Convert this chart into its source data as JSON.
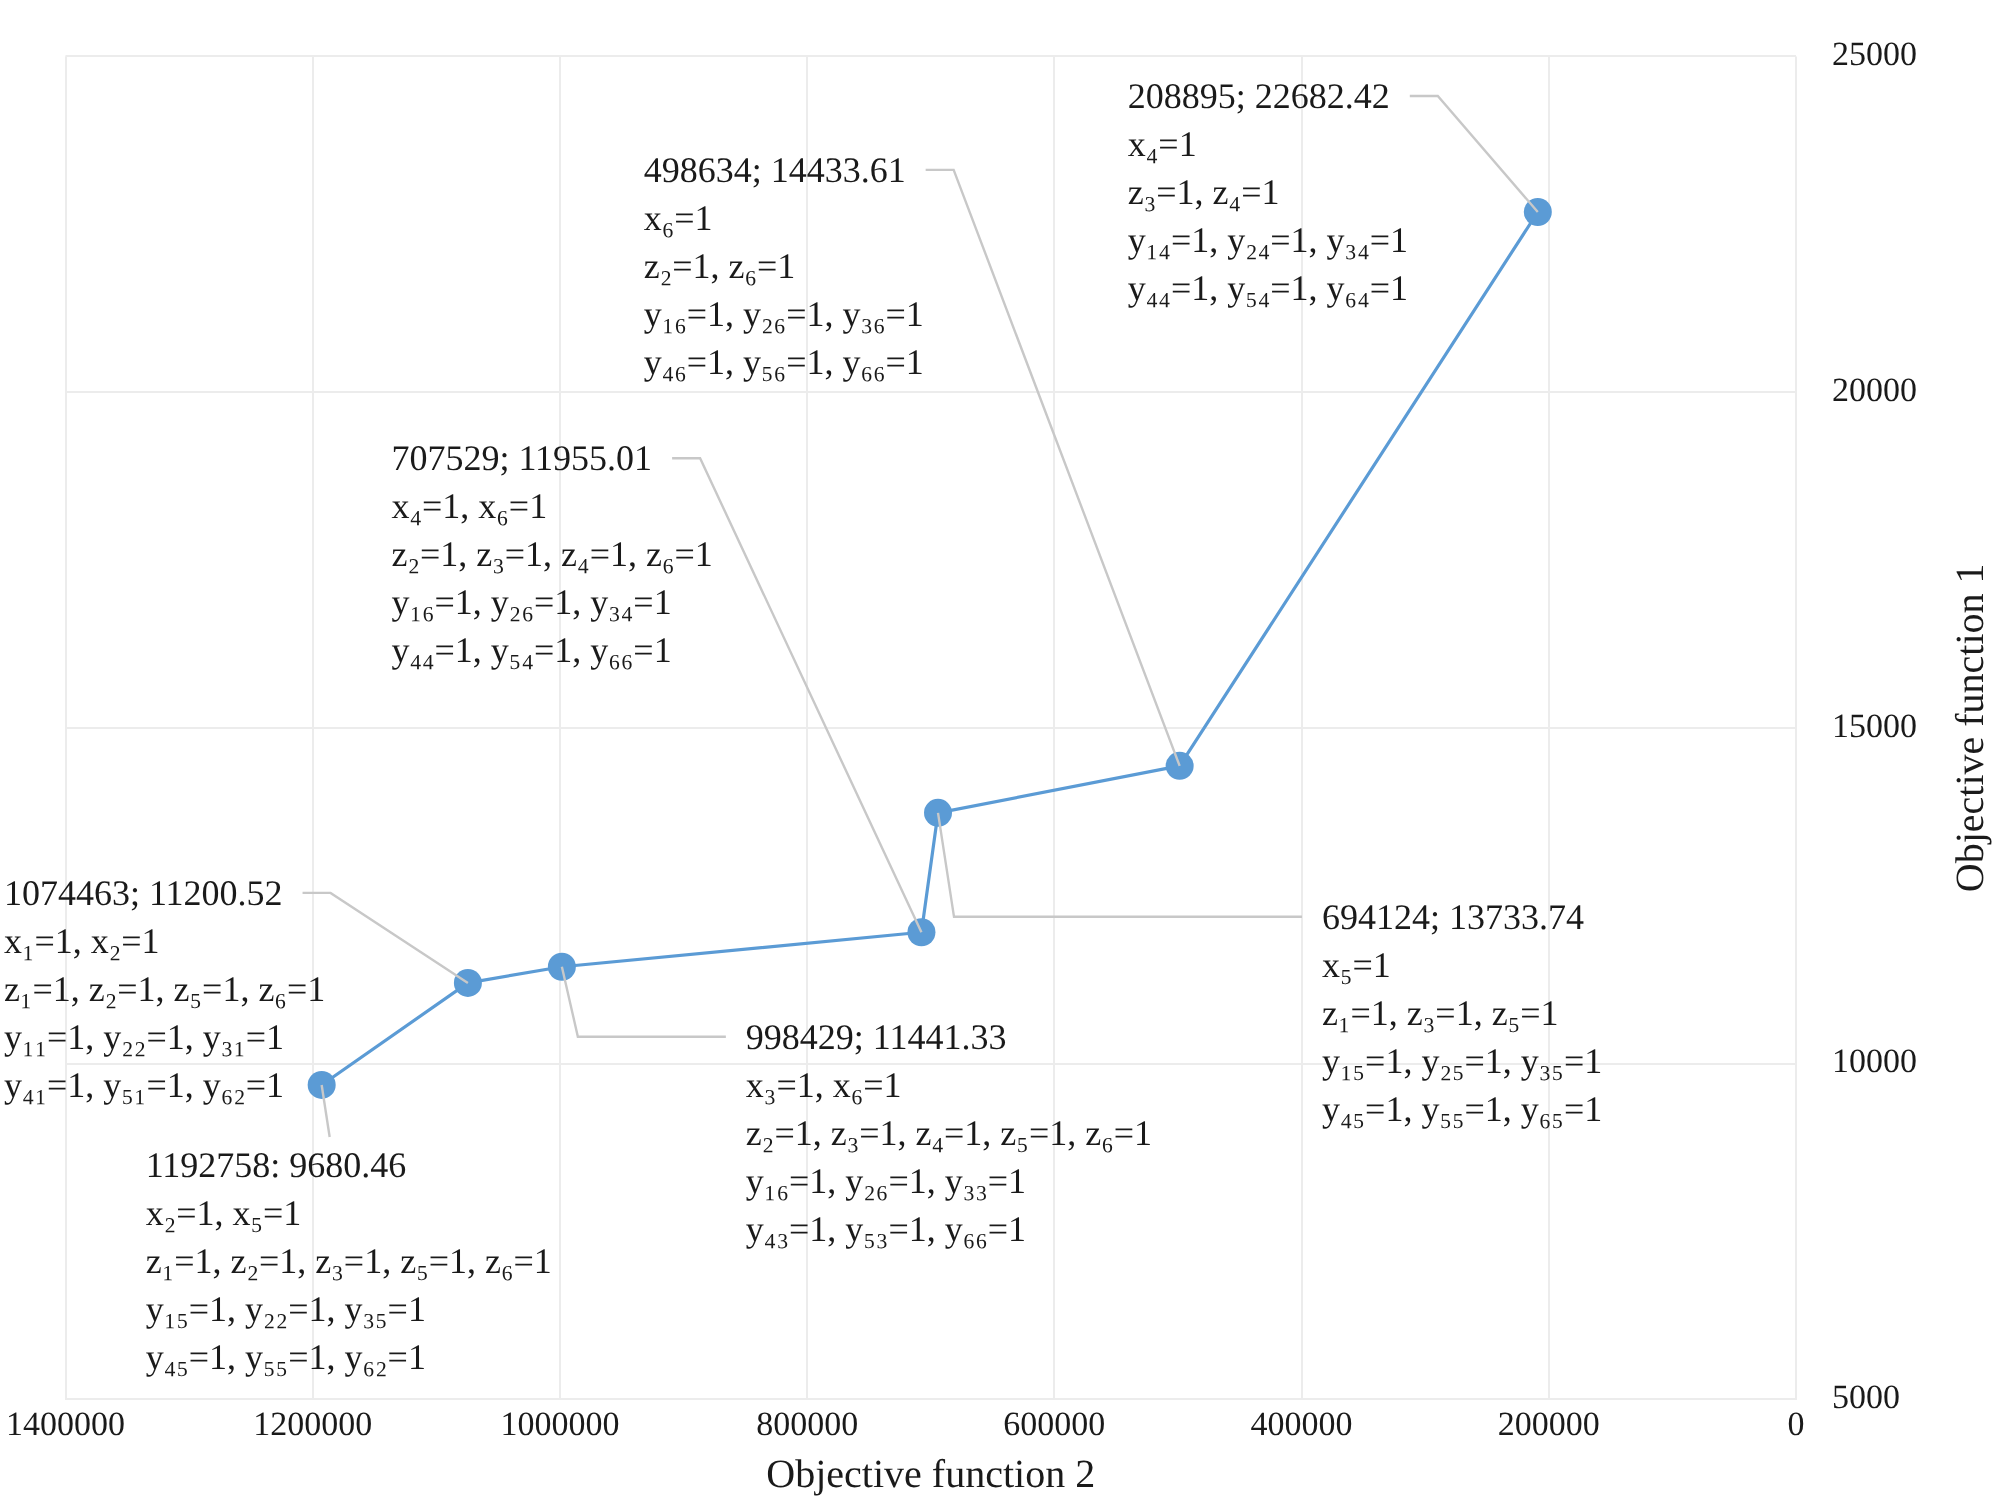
{
  "chart_data": {
    "type": "line",
    "xlabel": "Objective function 2",
    "ylabel": "Objective function 1",
    "x": [
      1192758,
      1074463,
      998429,
      707529,
      694124,
      498634,
      208895
    ],
    "series": [
      {
        "color": "#5b9bd5",
        "values": [
          9680.46,
          11200.52,
          11441.33,
          11955.01,
          13733.74,
          14433.61,
          22682.42
        ]
      }
    ],
    "xlim": [
      1400000,
      0
    ],
    "xticks": [
      1400000,
      1200000,
      1000000,
      800000,
      600000,
      400000,
      200000,
      0
    ],
    "ylim": [
      5000,
      25000
    ],
    "yticks": [
      5000,
      10000,
      15000,
      20000,
      25000
    ],
    "grid": true,
    "marker": "circle",
    "line_style": "solid",
    "legend": false,
    "annotations": [
      {
        "text": "1192758: 9680.46\nx₂=1, x₅=1\nz₁=1, z₂=1, z₃=1, z₅=1, z₆=1\ny₁₅=1, y₂₂=1, y₃₅=1\ny₄₅=1, y₅₅=1, y₆₂=1",
        "x": 1192758,
        "y": 9680.46
      },
      {
        "text": "1074463; 11200.52\nx₁=1, x₂=1\nz₁=1, z₂=1, z₅=1, z₆=1\ny₁₁=1, y₂₂=1, y₃₁=1\ny₄₁=1, y₅₁=1, y₆₂=1",
        "x": 1074463,
        "y": 11200.52
      },
      {
        "text": "998429; 11441.33\nx₃=1, x₆=1\nz₂=1, z₃=1, z₄=1, z₅=1, z₆=1\ny₁₆=1, y₂₆=1, y₃₃=1\ny₄₃=1, y₅₃=1, y₆₆=1",
        "x": 998429,
        "y": 11441.33
      },
      {
        "text": "707529; 11955.01\nx₄=1, x₆=1\nz₂=1, z₃=1, z₄=1, z₆=1\ny₁₆=1, y₂₆=1, y₃₄=1\ny₄₄=1, y₅₄=1, y₆₆=1",
        "x": 707529,
        "y": 11955.01
      },
      {
        "text": "694124; 13733.74\nx₅=1\nz₁=1, z₃=1, z₅=1\ny₁₅=1, y₂₅=1, y₃₅=1\ny₄₅=1, y₅₅=1, y₆₅=1",
        "x": 694124,
        "y": 13733.74
      },
      {
        "text": "498634; 14433.61\nx₆=1\nz₂=1, z₆=1\ny₁₆=1, y₂₆=1, y₃₆=1\ny₄₆=1, y₅₆=1, y₆₆=1",
        "x": 498634,
        "y": 14433.61
      },
      {
        "text": "208895; 22682.42\nx₄=1\nz₃=1, z₄=1\ny₁₄=1, y₂₄=1, y₃₄=1\ny₄₄=1, y₅₄=1, y₆₄=1",
        "x": 208895,
        "y": 22682.42
      }
    ]
  }
}
